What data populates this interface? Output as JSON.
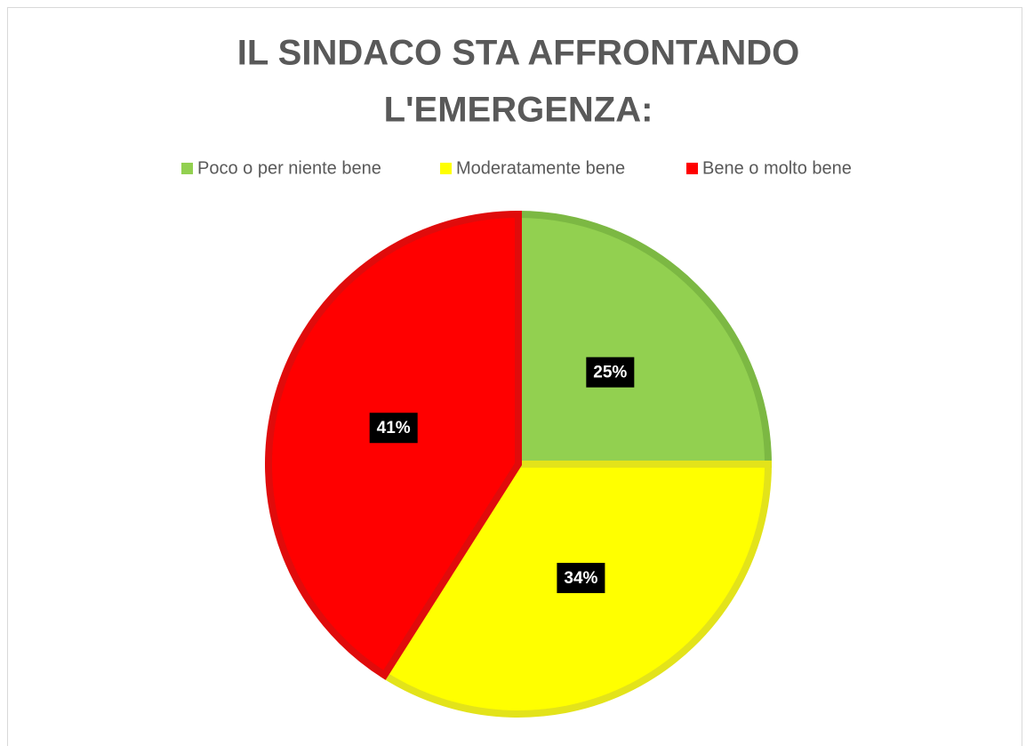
{
  "chart_data": {
    "type": "pie",
    "title": [
      "IL SINDACO STA AFFRONTANDO",
      "L'EMERGENZA:"
    ],
    "categories": [
      "Poco o per niente bene",
      "Moderatamente bene",
      "Bene o molto bene"
    ],
    "values": [
      25,
      34,
      41
    ],
    "value_labels": [
      "25%",
      "34%",
      "41%"
    ],
    "colors": [
      "#92d050",
      "#ffff00",
      "#ff0000"
    ],
    "border_colors": [
      "#7cb843",
      "#e3e31a",
      "#e00b0b"
    ],
    "legend": "top"
  }
}
